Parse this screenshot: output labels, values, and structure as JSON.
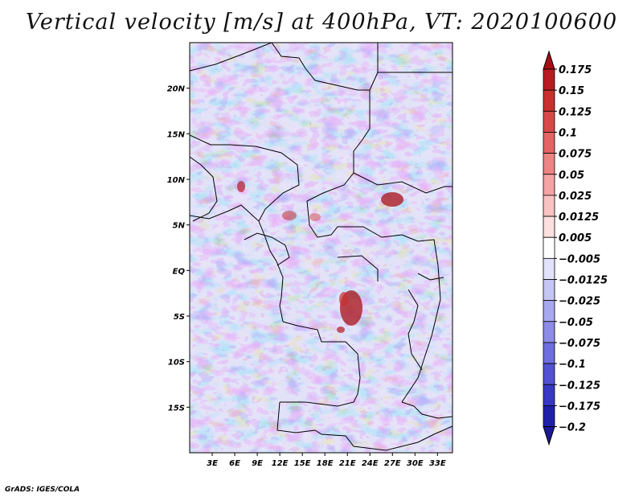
{
  "title": "Vertical velocity [m/s] at 400hPa, VT: 2020100600",
  "footer": "GrADS: IGES/COLA",
  "map": {
    "lon_range": [
      0,
      35
    ],
    "lat_range": [
      -20,
      25
    ],
    "lat_ticks": [
      {
        "value": 20,
        "label": "20N"
      },
      {
        "value": 15,
        "label": "15N"
      },
      {
        "value": 10,
        "label": "10N"
      },
      {
        "value": 5,
        "label": "5N"
      },
      {
        "value": 0,
        "label": "EQ"
      },
      {
        "value": -5,
        "label": "5S"
      },
      {
        "value": -10,
        "label": "10S"
      },
      {
        "value": -15,
        "label": "15S"
      }
    ],
    "lon_ticks": [
      {
        "value": 3,
        "label": "3E"
      },
      {
        "value": 6,
        "label": "6E"
      },
      {
        "value": 9,
        "label": "9E"
      },
      {
        "value": 12,
        "label": "12E"
      },
      {
        "value": 15,
        "label": "15E"
      },
      {
        "value": 18,
        "label": "18E"
      },
      {
        "value": 21,
        "label": "21E"
      },
      {
        "value": 24,
        "label": "24E"
      },
      {
        "value": 27,
        "label": "27E"
      },
      {
        "value": 30,
        "label": "30E"
      },
      {
        "value": 33,
        "label": "33E"
      }
    ]
  },
  "colorbar": {
    "levels": [
      {
        "label": "0.175",
        "color": "#a50f15"
      },
      {
        "label": "0.15",
        "color": "#b81c22"
      },
      {
        "label": "0.125",
        "color": "#c83030"
      },
      {
        "label": "0.1",
        "color": "#d74848"
      },
      {
        "label": "0.075",
        "color": "#e36464"
      },
      {
        "label": "0.05",
        "color": "#ec8484"
      },
      {
        "label": "0.025",
        "color": "#f4a4a4"
      },
      {
        "label": "0.0125",
        "color": "#f9c3c3"
      },
      {
        "label": "0.005",
        "color": "#fce0e0"
      },
      {
        "label": "-0.005",
        "color": "#ffffff"
      },
      {
        "label": "-0.0125",
        "color": "#e2e2fa"
      },
      {
        "label": "-0.025",
        "color": "#c6c6f4"
      },
      {
        "label": "-0.05",
        "color": "#a8a8ee"
      },
      {
        "label": "-0.075",
        "color": "#8c8ce6"
      },
      {
        "label": "-0.1",
        "color": "#6e6ede"
      },
      {
        "label": "-0.125",
        "color": "#5252d2"
      },
      {
        "label": "-0.175",
        "color": "#3838c2"
      },
      {
        "label": "-0.2",
        "color": "#2020a8"
      }
    ],
    "top_color": "#a50f15",
    "bottom_color": "#1a1a96"
  }
}
